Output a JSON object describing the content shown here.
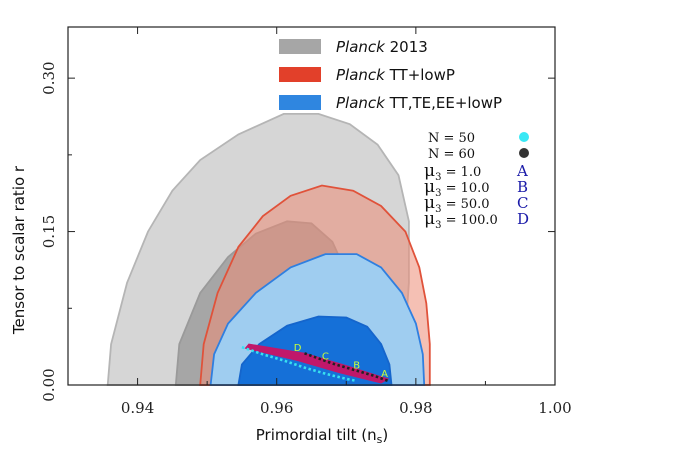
{
  "chart_data": {
    "type": "contour",
    "xlabel": "Primordial tilt (n",
    "xlabel_sub": "s",
    "xlabel_close": ")",
    "ylabel": "Tensor to scalar ratio r",
    "xlim": [
      0.93,
      1.0
    ],
    "ylim": [
      0.0,
      0.35
    ],
    "xticks": [
      "0.94",
      "0.96",
      "0.98",
      "1.00"
    ],
    "xtick_values": [
      0.94,
      0.96,
      0.98,
      1.0
    ],
    "yticks": [
      "0.00",
      "0.15",
      "0.30"
    ],
    "ytick_values": [
      0.0,
      0.15,
      0.3
    ],
    "legend": [
      {
        "italic": "Planck",
        "rest": " 2013",
        "color": "#a6a6a6"
      },
      {
        "italic": "Planck",
        "rest": " TT+lowP",
        "color": "#e2402a"
      },
      {
        "italic": "Planck",
        "rest": " TT,TE,EE+lowP",
        "color": "#2f86e0"
      }
    ],
    "contours": [
      {
        "name": "Planck 2013 95%",
        "fill": "#d6d6d6",
        "stroke": "#b5b5b5",
        "points": [
          [
            0.9357,
            0.0
          ],
          [
            0.9362,
            0.04
          ],
          [
            0.9385,
            0.1
          ],
          [
            0.9415,
            0.15
          ],
          [
            0.945,
            0.19
          ],
          [
            0.949,
            0.22
          ],
          [
            0.9545,
            0.245
          ],
          [
            0.961,
            0.265
          ],
          [
            0.966,
            0.265
          ],
          [
            0.9705,
            0.255
          ],
          [
            0.9745,
            0.235
          ],
          [
            0.9775,
            0.205
          ],
          [
            0.979,
            0.16
          ],
          [
            0.979,
            0.1
          ],
          [
            0.9785,
            0.05
          ],
          [
            0.978,
            0.0
          ]
        ]
      },
      {
        "name": "Planck 2013 68%",
        "fill": "#a6a6a6",
        "stroke": "#9a9a9a",
        "points": [
          [
            0.9455,
            0.0
          ],
          [
            0.946,
            0.04
          ],
          [
            0.949,
            0.09
          ],
          [
            0.953,
            0.125
          ],
          [
            0.957,
            0.148
          ],
          [
            0.9615,
            0.16
          ],
          [
            0.965,
            0.158
          ],
          [
            0.968,
            0.14
          ],
          [
            0.97,
            0.11
          ],
          [
            0.971,
            0.07
          ],
          [
            0.9715,
            0.03
          ],
          [
            0.9718,
            0.0
          ]
        ]
      },
      {
        "name": "Planck TT+lowP 95%",
        "fill": "rgba(236,140,118,0.55)",
        "stroke": "#e0523a",
        "points": [
          [
            0.949,
            0.0
          ],
          [
            0.9495,
            0.04
          ],
          [
            0.9515,
            0.09
          ],
          [
            0.9545,
            0.135
          ],
          [
            0.958,
            0.165
          ],
          [
            0.962,
            0.185
          ],
          [
            0.9665,
            0.195
          ],
          [
            0.971,
            0.19
          ],
          [
            0.975,
            0.175
          ],
          [
            0.9785,
            0.15
          ],
          [
            0.9805,
            0.115
          ],
          [
            0.9815,
            0.08
          ],
          [
            0.982,
            0.04
          ],
          [
            0.982,
            0.0
          ]
        ]
      },
      {
        "name": "Planck TT+lowP 68%",
        "fill": "rgba(226,80,60,0.30)",
        "stroke": "#d2503a",
        "points": [
          [
            0.956,
            0.0
          ],
          [
            0.9565,
            0.03
          ],
          [
            0.959,
            0.06
          ],
          [
            0.9625,
            0.08
          ],
          [
            0.9665,
            0.09
          ],
          [
            0.97,
            0.088
          ],
          [
            0.973,
            0.075
          ],
          [
            0.975,
            0.05
          ],
          [
            0.9755,
            0.025
          ],
          [
            0.9755,
            0.0
          ]
        ]
      },
      {
        "name": "Planck TT,TE,EE+lowP 95%",
        "fill": "#9fcdf0",
        "stroke": "#2f7fe0",
        "points": [
          [
            0.9505,
            0.0
          ],
          [
            0.951,
            0.03
          ],
          [
            0.953,
            0.06
          ],
          [
            0.957,
            0.09
          ],
          [
            0.962,
            0.115
          ],
          [
            0.967,
            0.128
          ],
          [
            0.9715,
            0.128
          ],
          [
            0.975,
            0.115
          ],
          [
            0.978,
            0.09
          ],
          [
            0.98,
            0.06
          ],
          [
            0.981,
            0.03
          ],
          [
            0.9812,
            0.0
          ]
        ]
      },
      {
        "name": "Planck TT,TE,EE+lowP 68%",
        "fill": "#1570d8",
        "stroke": "#1565cc",
        "points": [
          [
            0.9545,
            0.0
          ],
          [
            0.955,
            0.02
          ],
          [
            0.9575,
            0.04
          ],
          [
            0.9615,
            0.058
          ],
          [
            0.966,
            0.067
          ],
          [
            0.97,
            0.066
          ],
          [
            0.973,
            0.057
          ],
          [
            0.975,
            0.04
          ],
          [
            0.9762,
            0.02
          ],
          [
            0.9765,
            0.0
          ]
        ]
      }
    ],
    "lines": [
      {
        "name": "N = 50",
        "color": "#38e0f0",
        "points": [
          [
            0.955,
            0.037
          ],
          [
            0.958,
            0.03
          ],
          [
            0.961,
            0.024
          ],
          [
            0.964,
            0.017
          ],
          [
            0.967,
            0.011
          ],
          [
            0.97,
            0.006
          ],
          [
            0.9715,
            0.004
          ]
        ]
      },
      {
        "name": "N = 60",
        "color": "#222222",
        "points": [
          [
            0.964,
            0.031
          ],
          [
            0.966,
            0.026
          ],
          [
            0.968,
            0.021
          ],
          [
            0.97,
            0.017
          ],
          [
            0.972,
            0.013
          ],
          [
            0.974,
            0.009
          ],
          [
            0.976,
            0.004
          ]
        ]
      }
    ],
    "band": {
      "color": "#c0186a",
      "points": [
        [
          0.956,
          0.04
        ],
        [
          0.964,
          0.031
        ],
        [
          0.97,
          0.019
        ],
        [
          0.976,
          0.006
        ],
        [
          0.975,
          0.002
        ],
        [
          0.969,
          0.012
        ],
        [
          0.963,
          0.024
        ],
        [
          0.9555,
          0.036
        ]
      ]
    },
    "point_labels": [
      {
        "label": "A",
        "x": 0.9755,
        "y": 0.008
      },
      {
        "label": "B",
        "x": 0.9715,
        "y": 0.016
      },
      {
        "label": "C",
        "x": 0.967,
        "y": 0.025
      },
      {
        "label": "D",
        "x": 0.963,
        "y": 0.033
      }
    ],
    "annotations": {
      "n50": "N = 50",
      "n60": "N = 60",
      "mu_entries": [
        {
          "text": " = 1.0",
          "letter": "A"
        },
        {
          "text": " = 10.0",
          "letter": "B"
        },
        {
          "text": " = 50.0",
          "letter": "C"
        },
        {
          "text": " = 100.0",
          "letter": "D"
        }
      ],
      "mu_symbol": "μ",
      "mu_sub": "3",
      "n50_color": "#38e8f5",
      "n60_color": "#333333"
    }
  }
}
